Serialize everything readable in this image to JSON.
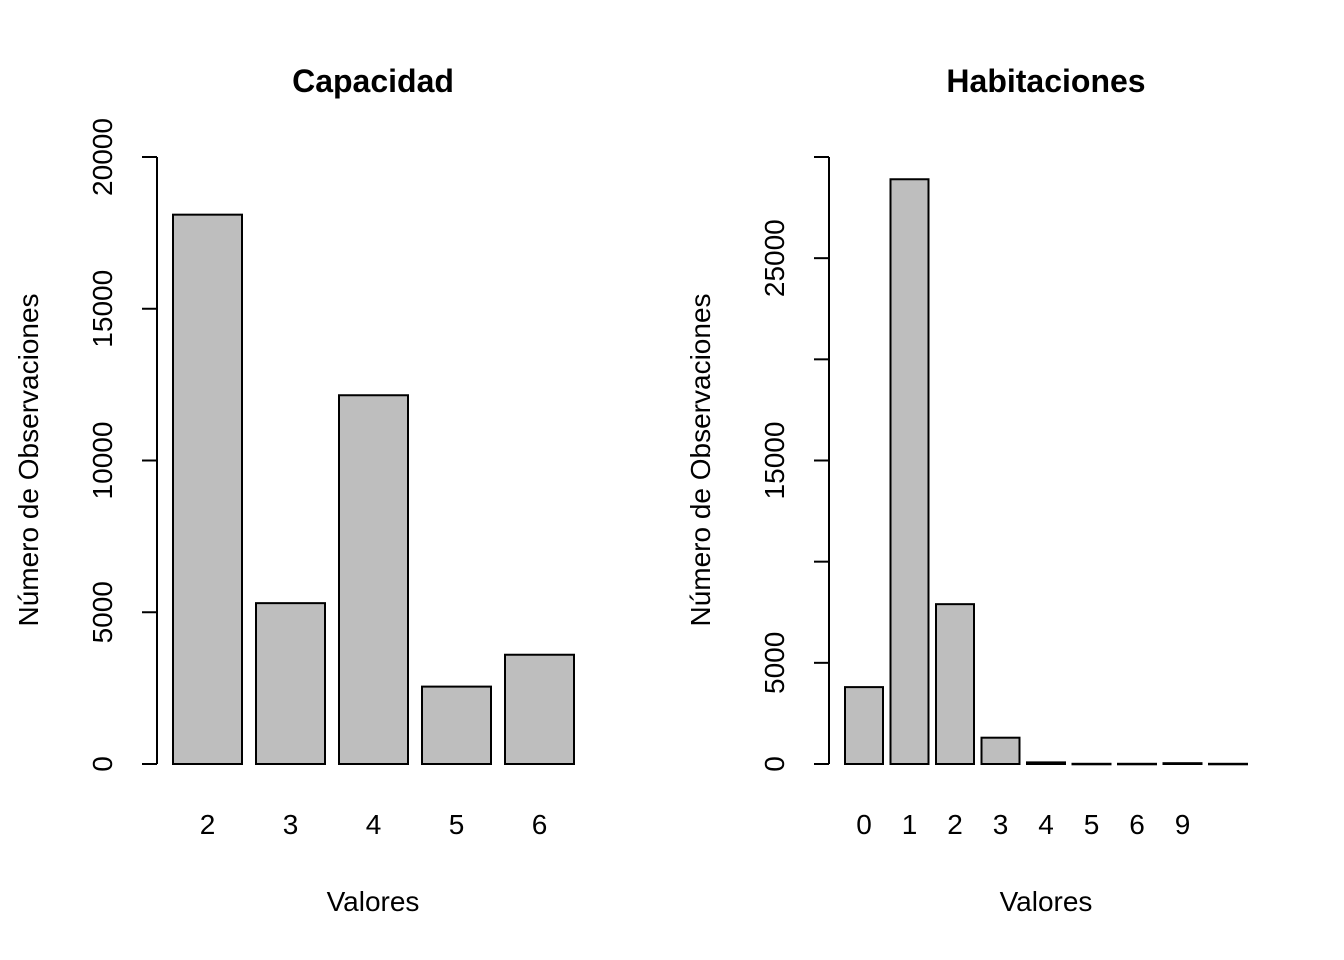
{
  "chart_data": [
    {
      "type": "bar",
      "title": "Capacidad",
      "xlabel": "Valores",
      "ylabel": "Número de Observaciones",
      "categories": [
        "2",
        "3",
        "4",
        "5",
        "6"
      ],
      "values": [
        18100,
        5300,
        12150,
        2550,
        3600
      ],
      "ylim": [
        0,
        20000
      ],
      "yticks": [
        0,
        5000,
        10000,
        15000,
        20000
      ],
      "ytick_labels": [
        "0",
        "5000",
        "10000",
        "15000",
        "20000"
      ],
      "bar_color": "#bebebe",
      "grid": false
    },
    {
      "type": "bar",
      "title": "Habitaciones",
      "xlabel": "Valores",
      "ylabel": "Número de Observaciones",
      "categories": [
        "0",
        "1",
        "2",
        "3",
        "4",
        "5",
        "6",
        "9",
        ""
      ],
      "values": [
        3800,
        28900,
        7900,
        1300,
        80,
        10,
        10,
        40,
        10
      ],
      "ylim": [
        0,
        30000
      ],
      "yticks": [
        0,
        5000,
        10000,
        15000,
        20000,
        25000,
        30000
      ],
      "ytick_labels": [
        "0",
        "5000",
        "",
        "15000",
        "",
        "25000",
        ""
      ],
      "bar_color": "#bebebe",
      "grid": false
    }
  ]
}
